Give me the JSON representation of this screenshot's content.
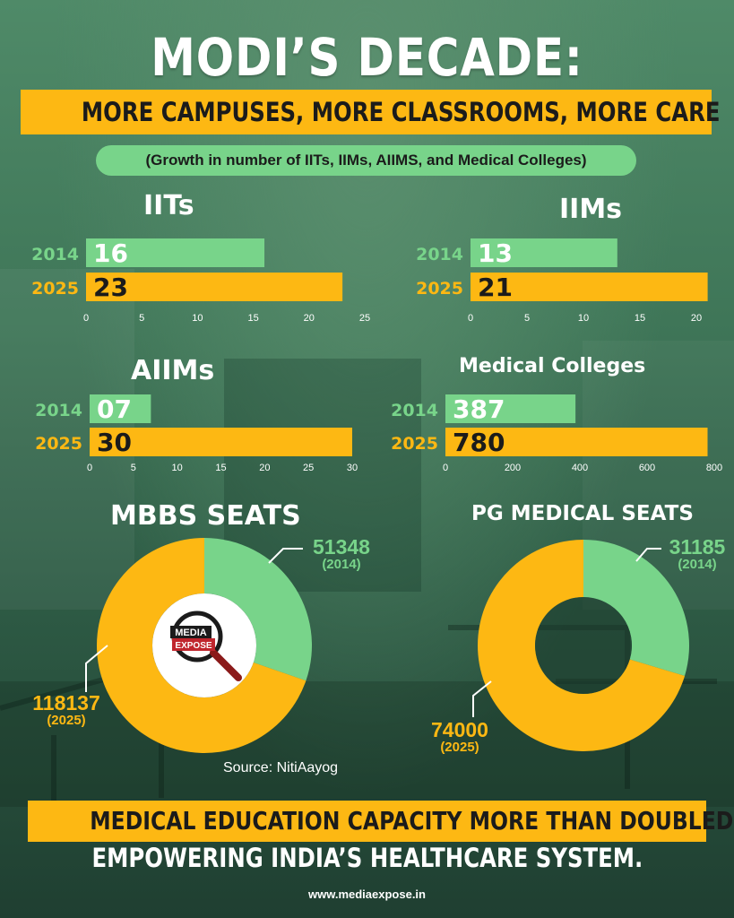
{
  "header": {
    "title": "MODI’S DECADE:",
    "subtitle": "MORE CAMPUSES, MORE CLASSROOMS, MORE CARE",
    "note": "(Growth in number of IITs, IIMs, AIIMS, and Medical Colleges)"
  },
  "colors": {
    "green": "#78d48a",
    "gold": "#fdb813",
    "dark": "#1b1b1b"
  },
  "chart_data": [
    {
      "type": "bar",
      "title": "IITs",
      "categories": [
        "2014",
        "2025"
      ],
      "values": [
        16,
        23
      ],
      "value_labels": [
        "16",
        "23"
      ],
      "xlim": [
        0,
        25
      ],
      "ticks": [
        "0",
        "5",
        "10",
        "15",
        "20",
        "25"
      ]
    },
    {
      "type": "bar",
      "title": "IIMs",
      "categories": [
        "2014",
        "2025"
      ],
      "values": [
        13,
        21
      ],
      "value_labels": [
        "13",
        "21"
      ],
      "xlim": [
        0,
        21
      ],
      "ticks": [
        "0",
        "5",
        "10",
        "15",
        "20"
      ]
    },
    {
      "type": "bar",
      "title": "AIIMs",
      "categories": [
        "2014",
        "2025"
      ],
      "values": [
        7,
        30
      ],
      "value_labels": [
        "07",
        "30"
      ],
      "xlim": [
        0,
        30
      ],
      "ticks": [
        "0",
        "5",
        "10",
        "15",
        "20",
        "25",
        "30"
      ]
    },
    {
      "type": "bar",
      "title": "Medical Colleges",
      "categories": [
        "2014",
        "2025"
      ],
      "values": [
        387,
        780
      ],
      "value_labels": [
        "387",
        "780"
      ],
      "xlim": [
        0,
        800
      ],
      "ticks": [
        "0",
        "200",
        "400",
        "600",
        "800"
      ]
    },
    {
      "type": "pie",
      "title": "MBBS SEATS",
      "labels": [
        "(2014)",
        "(2025)"
      ],
      "values": [
        51348,
        118137
      ],
      "value_labels": [
        "51348",
        "118137"
      ]
    },
    {
      "type": "pie",
      "title": "PG MEDICAL SEATS",
      "labels": [
        "(2014)",
        "(2025)"
      ],
      "values": [
        31185,
        74000
      ],
      "value_labels": [
        "31185",
        "74000"
      ]
    }
  ],
  "logo": {
    "line1": "MEDIA",
    "line2": "EXPOSE"
  },
  "source": "Source: NitiAayog",
  "footer": {
    "line1": "MEDICAL EDUCATION CAPACITY MORE THAN DOUBLED,",
    "line2": "EMPOWERING INDIA’S HEALTHCARE SYSTEM.",
    "url": "www.mediaexpose.in"
  }
}
